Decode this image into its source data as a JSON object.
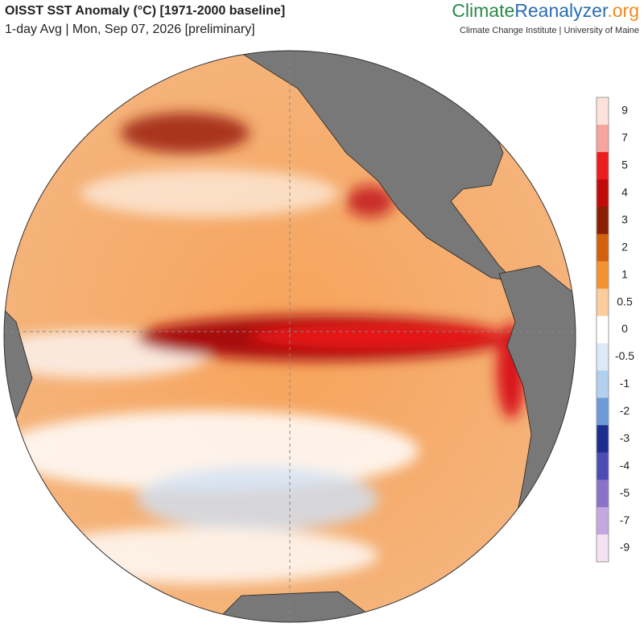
{
  "header": {
    "title": "OISST SST Anomaly (°C) [1971-2000 baseline]",
    "subtitle": "1-day Avg | Mon, Sep 07, 2026 [preliminary]"
  },
  "logo": {
    "part1": "Climate",
    "part2": "Reanalyzer",
    "part3": ".org",
    "credit": "Climate Change Institute | University of Maine"
  },
  "colorbar": {
    "ticks": [
      9,
      7,
      5,
      4,
      3,
      2,
      1,
      0.5,
      0,
      -0.5,
      -1,
      -2,
      -3,
      -4,
      -5,
      -7,
      -9
    ],
    "colors": [
      "#fce2da",
      "#f6a49c",
      "#ee1c1c",
      "#c20a0a",
      "#8c1e04",
      "#d4600e",
      "#f6922e",
      "#fccc9a",
      "#ffffff",
      "#dce9f8",
      "#b2d0f0",
      "#6c9ad8",
      "#1c2e92",
      "#4c4cb6",
      "#8a72c8",
      "#c6a8e0",
      "#f4e2f0"
    ]
  }
}
